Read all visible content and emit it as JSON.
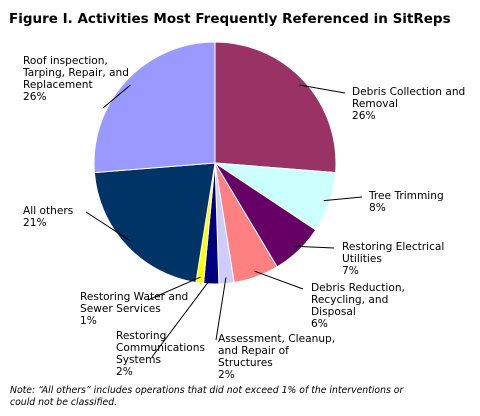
{
  "chart_data": {
    "type": "pie",
    "title": "Figure I. Activities Most Frequently Referenced in SitReps",
    "slices": [
      {
        "label": "Debris Collection and\nRemoval",
        "value": 26,
        "value_label": "26%",
        "color": "#993366"
      },
      {
        "label": "Tree Trimming",
        "value": 8,
        "value_label": "8%",
        "color": "#ccffff"
      },
      {
        "label": "Restoring Electrical\nUtilities",
        "value": 7,
        "value_label": "7%",
        "color": "#660066"
      },
      {
        "label": "Debris Reduction,\nRecycling, and\nDisposal",
        "value": 6,
        "value_label": "6%",
        "color": "#ff8080"
      },
      {
        "label": "Assessment, Cleanup,\nand Repair of\nStructures",
        "value": 2,
        "value_label": "2%",
        "color": "#ccccff"
      },
      {
        "label": "Restoring\nCommunications\nSystems",
        "value": 2,
        "value_label": "2%",
        "color": "#000080"
      },
      {
        "label": "Restoring Water and\nSewer Services",
        "value": 1,
        "value_label": "1%",
        "color": "#ffff00"
      },
      {
        "label": "All others",
        "value": 21,
        "value_label": "21%",
        "color": "#003366"
      },
      {
        "label": "Roof inspection,\nTarping, Repair, and\nReplacement",
        "value": 26,
        "value_label": "26%",
        "color": "#9999ff"
      }
    ],
    "note": "Note: “All others” includes operations that did not exceed 1% of the interventions or could not be classified."
  }
}
